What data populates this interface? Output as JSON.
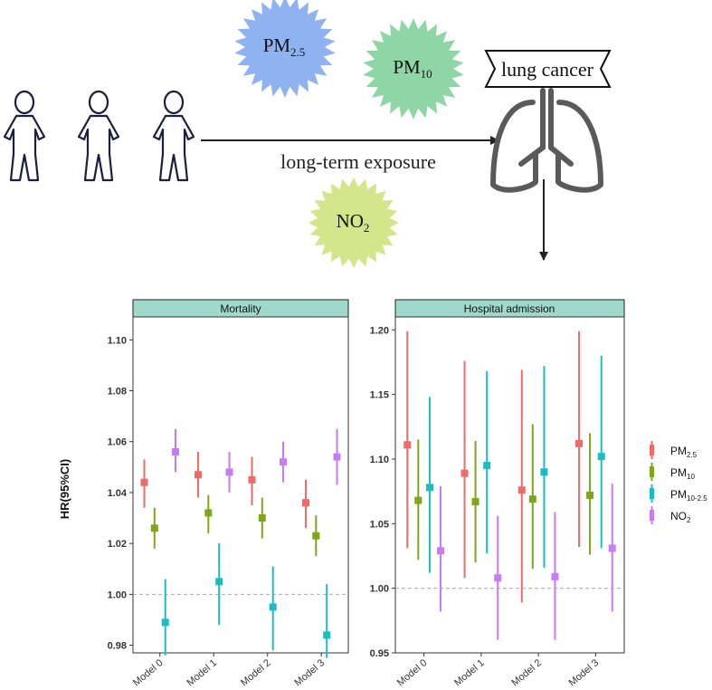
{
  "diagram": {
    "exposure_label": "long-term exposure",
    "outcome_label": "lung cancer",
    "pollutant_badges": [
      {
        "base": "PM",
        "sub": "2.5",
        "color": "#8fb2f0"
      },
      {
        "base": "PM",
        "sub": "10",
        "color": "#8fd6a6"
      },
      {
        "base": "NO",
        "sub": "2",
        "color": "#d3e68c"
      }
    ]
  },
  "y_axis_label": "HR(95%CI)",
  "colors": {
    "pm25": "#f06b67",
    "pm10": "#7fa61a",
    "pm1025": "#1bbdc3",
    "no2": "#c77cf5",
    "strip": "#9ed9cb",
    "reference": "#aaaaaa"
  },
  "chart_data": [
    {
      "type": "scatter",
      "title": "Mortality",
      "categories": [
        "Model 0",
        "Model 1",
        "Model 2",
        "Model 3"
      ],
      "ylim": [
        0.977,
        1.109
      ],
      "yticks": [
        "0.98",
        "1.00",
        "1.02",
        "1.04",
        "1.06",
        "1.08",
        "1.10"
      ],
      "reference_line": 1.0,
      "series": [
        {
          "name": "PM2.5",
          "points": [
            [
              1.044,
              1.034,
              1.053
            ],
            [
              1.047,
              1.038,
              1.056
            ],
            [
              1.045,
              1.035,
              1.054
            ],
            [
              1.036,
              1.026,
              1.045
            ]
          ]
        },
        {
          "name": "PM10",
          "points": [
            [
              1.026,
              1.018,
              1.034
            ],
            [
              1.032,
              1.024,
              1.039
            ],
            [
              1.03,
              1.022,
              1.038
            ],
            [
              1.023,
              1.015,
              1.031
            ]
          ]
        },
        {
          "name": "PM10-2.5",
          "points": [
            [
              0.989,
              0.976,
              1.006
            ],
            [
              1.005,
              0.988,
              1.02
            ],
            [
              0.995,
              0.978,
              1.011
            ],
            [
              0.984,
              0.975,
              1.004
            ]
          ]
        },
        {
          "name": "NO2",
          "points": [
            [
              1.056,
              1.048,
              1.065
            ],
            [
              1.048,
              1.04,
              1.056
            ],
            [
              1.052,
              1.044,
              1.06
            ],
            [
              1.054,
              1.043,
              1.065
            ]
          ]
        }
      ]
    },
    {
      "type": "scatter",
      "title": "Hospital admission",
      "categories": [
        "Model 0",
        "Model 1",
        "Model 2",
        "Model 3"
      ],
      "ylim": [
        0.95,
        1.21
      ],
      "yticks": [
        "0.95",
        "1.00",
        "1.05",
        "1.10",
        "1.15",
        "1.20"
      ],
      "reference_line": 1.0,
      "series": [
        {
          "name": "PM2.5",
          "points": [
            [
              1.111,
              1.031,
              1.199
            ],
            [
              1.089,
              1.008,
              1.176
            ],
            [
              1.076,
              0.989,
              1.169
            ],
            [
              1.112,
              1.032,
              1.199
            ]
          ]
        },
        {
          "name": "PM10",
          "points": [
            [
              1.068,
              1.022,
              1.115
            ],
            [
              1.067,
              1.02,
              1.114
            ],
            [
              1.069,
              1.015,
              1.127
            ],
            [
              1.072,
              1.026,
              1.12
            ]
          ]
        },
        {
          "name": "PM10-2.5",
          "points": [
            [
              1.078,
              1.012,
              1.148
            ],
            [
              1.095,
              1.027,
              1.168
            ],
            [
              1.09,
              1.016,
              1.172
            ],
            [
              1.102,
              1.031,
              1.18
            ]
          ]
        },
        {
          "name": "NO2",
          "points": [
            [
              1.029,
              0.982,
              1.079
            ],
            [
              1.008,
              0.96,
              1.056
            ],
            [
              1.009,
              0.96,
              1.059
            ],
            [
              1.031,
              0.982,
              1.081
            ]
          ]
        }
      ]
    }
  ],
  "legend": [
    {
      "key": "pm25",
      "base": "PM",
      "sub": "2.5"
    },
    {
      "key": "pm10",
      "base": "PM",
      "sub": "10"
    },
    {
      "key": "pm1025",
      "base": "PM",
      "sub": "10-2.5"
    },
    {
      "key": "no2",
      "base": "NO",
      "sub": "2"
    }
  ]
}
